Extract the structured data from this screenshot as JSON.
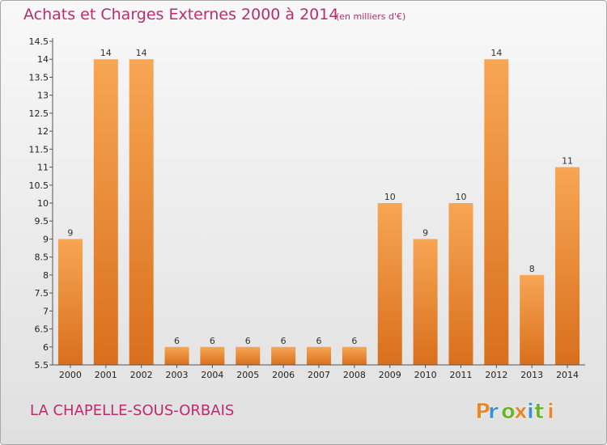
{
  "header": {
    "title": "Achats et Charges Externes 2000 à 2014",
    "unit": "(en milliers d'€)"
  },
  "footer": {
    "commune": "LA CHAPELLE-SOUS-ORBAIS",
    "logo_text": "Proxiti"
  },
  "colors": {
    "title": "#bb2c6f",
    "bar_light": "#f7a654",
    "bar_dark": "#d96f1c",
    "logo_letters": [
      "#e8862a",
      "#3a8fd0",
      "#6ab42c",
      "#e8862a",
      "#3a8fd0",
      "#6ab42c",
      "#e8862a"
    ]
  },
  "chart_data": {
    "type": "bar",
    "title": "Achats et Charges Externes 2000 à 2014",
    "subtitle": "(en milliers d'€)",
    "categories": [
      "2000",
      "2001",
      "2002",
      "2003",
      "2004",
      "2005",
      "2006",
      "2007",
      "2008",
      "2009",
      "2010",
      "2011",
      "2012",
      "2013",
      "2014"
    ],
    "values": [
      9,
      14,
      14,
      6,
      6,
      6,
      6,
      6,
      6,
      10,
      9,
      10,
      14,
      8,
      11
    ],
    "value_labels": [
      "9",
      "14",
      "14",
      "6",
      "6",
      "6",
      "6",
      "6",
      "6",
      "10",
      "9",
      "10",
      "14",
      "8",
      "11"
    ],
    "y_ticks": [
      "5.5",
      "6",
      "6.5",
      "7",
      "7.5",
      "8",
      "8.5",
      "9",
      "9.5",
      "10",
      "10.5",
      "11",
      "11.5",
      "12",
      "12.5",
      "13",
      "13.5",
      "14",
      "14.5"
    ],
    "ylim": [
      5.5,
      14.5
    ],
    "grid": false,
    "legend": "none"
  }
}
